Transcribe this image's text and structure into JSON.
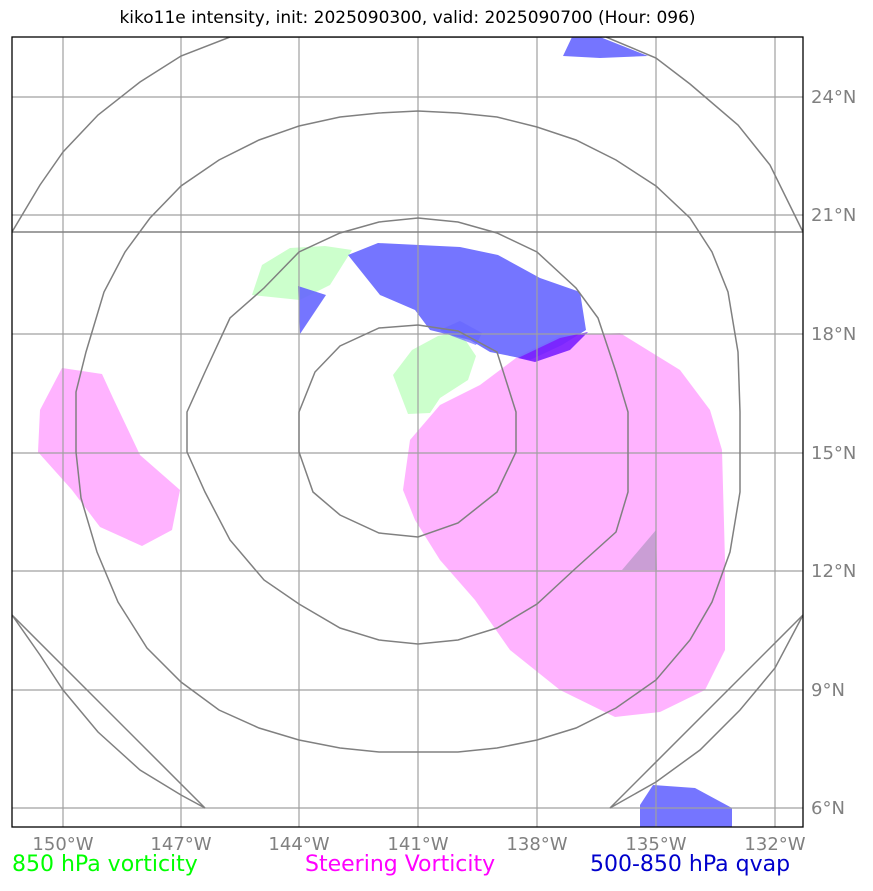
{
  "title": "kiko11e intensity, init: 2025090300, valid: 2025090700 (Hour: 096)",
  "lon_ticks": [
    "150°W",
    "147°W",
    "144°W",
    "141°W",
    "138°W",
    "135°W",
    "132°W"
  ],
  "lat_ticks": [
    "24°N",
    "21°N",
    "18°N",
    "15°N",
    "12°N",
    "9°N",
    "6°N"
  ],
  "legend": [
    {
      "label": "850 hPa vorticity",
      "color": "#00ff00"
    },
    {
      "label": "Steering Vorticity",
      "color": "#ff00ff"
    },
    {
      "label": "500-850 hPa qvap",
      "color": "#0000cc"
    }
  ],
  "colors": {
    "vorticity_850": "#ccffcc",
    "steering_vorticity": "#ffb3ff",
    "qvap": "#6666ff",
    "range_rings": "#808080",
    "gridlines": "#a0a0a0"
  }
}
